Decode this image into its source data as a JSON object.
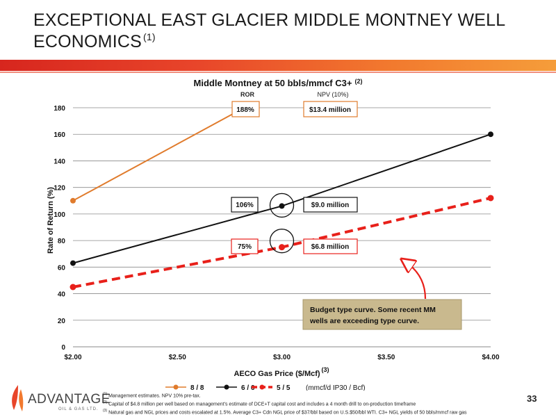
{
  "slide": {
    "title_line1": "EXCEPTIONAL EAST GLACIER MIDDLE MONTNEY WELL",
    "title_line2": "ECONOMICS",
    "title_footnote": "(1)",
    "page_number": "33",
    "logo_text": "ADVANTAGE",
    "logo_subtext": "OIL & GAS LTD."
  },
  "footnotes": [
    {
      "marker": "(1)",
      "text": "Management estimates. NPV 10% pre-tax."
    },
    {
      "marker": "(2)",
      "text": "Capital of $4.8 million per well based on management's estimate of DCE+T capital cost and includes a 4 month drill to on-production timeframe"
    },
    {
      "marker": "(3)",
      "text": "Natural gas and NGL prices and costs escalated at 1.5%. Average C3+ Cdn NGL price of $37/bbl based on U.S.$50/bbl WTI. C3+ NGL yields of 50 bbls/mmcf raw gas"
    }
  ],
  "chart_data": {
    "type": "line",
    "title": "Middle Montney at 50 bbls/mmcf C3+",
    "title_footnote": "(2)",
    "xlabel": "AECO Gas Price ($/Mcf)",
    "xlabel_footnote": "(3)",
    "ylabel": "Rate of Return (%)",
    "xlim": [
      2.0,
      4.0
    ],
    "ylim": [
      0,
      180
    ],
    "x_ticks": [
      2.0,
      2.5,
      3.0,
      3.5,
      4.0
    ],
    "x_tick_labels": [
      "$2.00",
      "$2.50",
      "$3.00",
      "$3.50",
      "$4.00"
    ],
    "y_ticks": [
      0,
      20,
      40,
      60,
      80,
      100,
      120,
      140,
      160,
      180
    ],
    "y_tick_labels": [
      "0",
      "20",
      "40",
      "60",
      "80",
      "100",
      "120",
      "140",
      "160",
      "180"
    ],
    "grid": "horizontal",
    "legend_position": "bottom",
    "legend_note": "(mmcf/d IP30 / Bcf)",
    "series": [
      {
        "name": "8 / 8",
        "color": "#e07b2c",
        "style": "solid",
        "x": [
          2.0,
          2.82
        ],
        "y": [
          110,
          180
        ]
      },
      {
        "name": "6 / 6",
        "color": "#111111",
        "style": "solid",
        "x": [
          2.0,
          3.0,
          4.0
        ],
        "y": [
          63,
          106,
          160
        ]
      },
      {
        "name": "5 / 5",
        "color": "#e8201a",
        "style": "dashed",
        "x": [
          2.0,
          3.0,
          4.0
        ],
        "y": [
          45,
          75,
          112
        ]
      }
    ],
    "column_headers": {
      "ror": "ROR",
      "npv": "NPV (10%)"
    },
    "annotations": [
      {
        "ror": "188%",
        "npv": "$13.4 million",
        "color": "#e07b2c"
      },
      {
        "ror": "106%",
        "npv": "$9.0 million",
        "color": "#111111"
      },
      {
        "ror": "75%",
        "npv": "$6.8 million",
        "color": "#e8201a"
      }
    ],
    "callout": {
      "text_line1": "Budget type curve.  Some recent MM",
      "text_line2": "wells are exceeding type curve."
    }
  }
}
